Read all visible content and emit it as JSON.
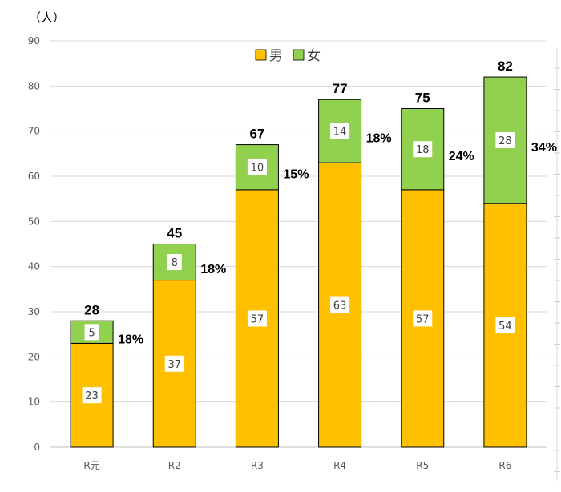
{
  "chart_data": {
    "type": "bar",
    "stacked": true,
    "unit_label": "（人）",
    "categories": [
      "R元",
      "R2",
      "R3",
      "R4",
      "R5",
      "R6"
    ],
    "series": [
      {
        "name": "男",
        "color": "#FFC000",
        "values": [
          23,
          37,
          57,
          63,
          57,
          54
        ]
      },
      {
        "name": "女",
        "color": "#92D050",
        "values": [
          5,
          8,
          10,
          14,
          18,
          28
        ]
      }
    ],
    "totals": [
      28,
      45,
      67,
      77,
      75,
      82
    ],
    "female_share_labels": [
      "18%",
      "18%",
      "15%",
      "18%",
      "24%",
      "34%"
    ],
    "ylim": [
      0,
      90
    ],
    "yticks": [
      0,
      10,
      20,
      30,
      40,
      50,
      60,
      70,
      80,
      90
    ],
    "grid": true,
    "legend_position": "top-center"
  }
}
